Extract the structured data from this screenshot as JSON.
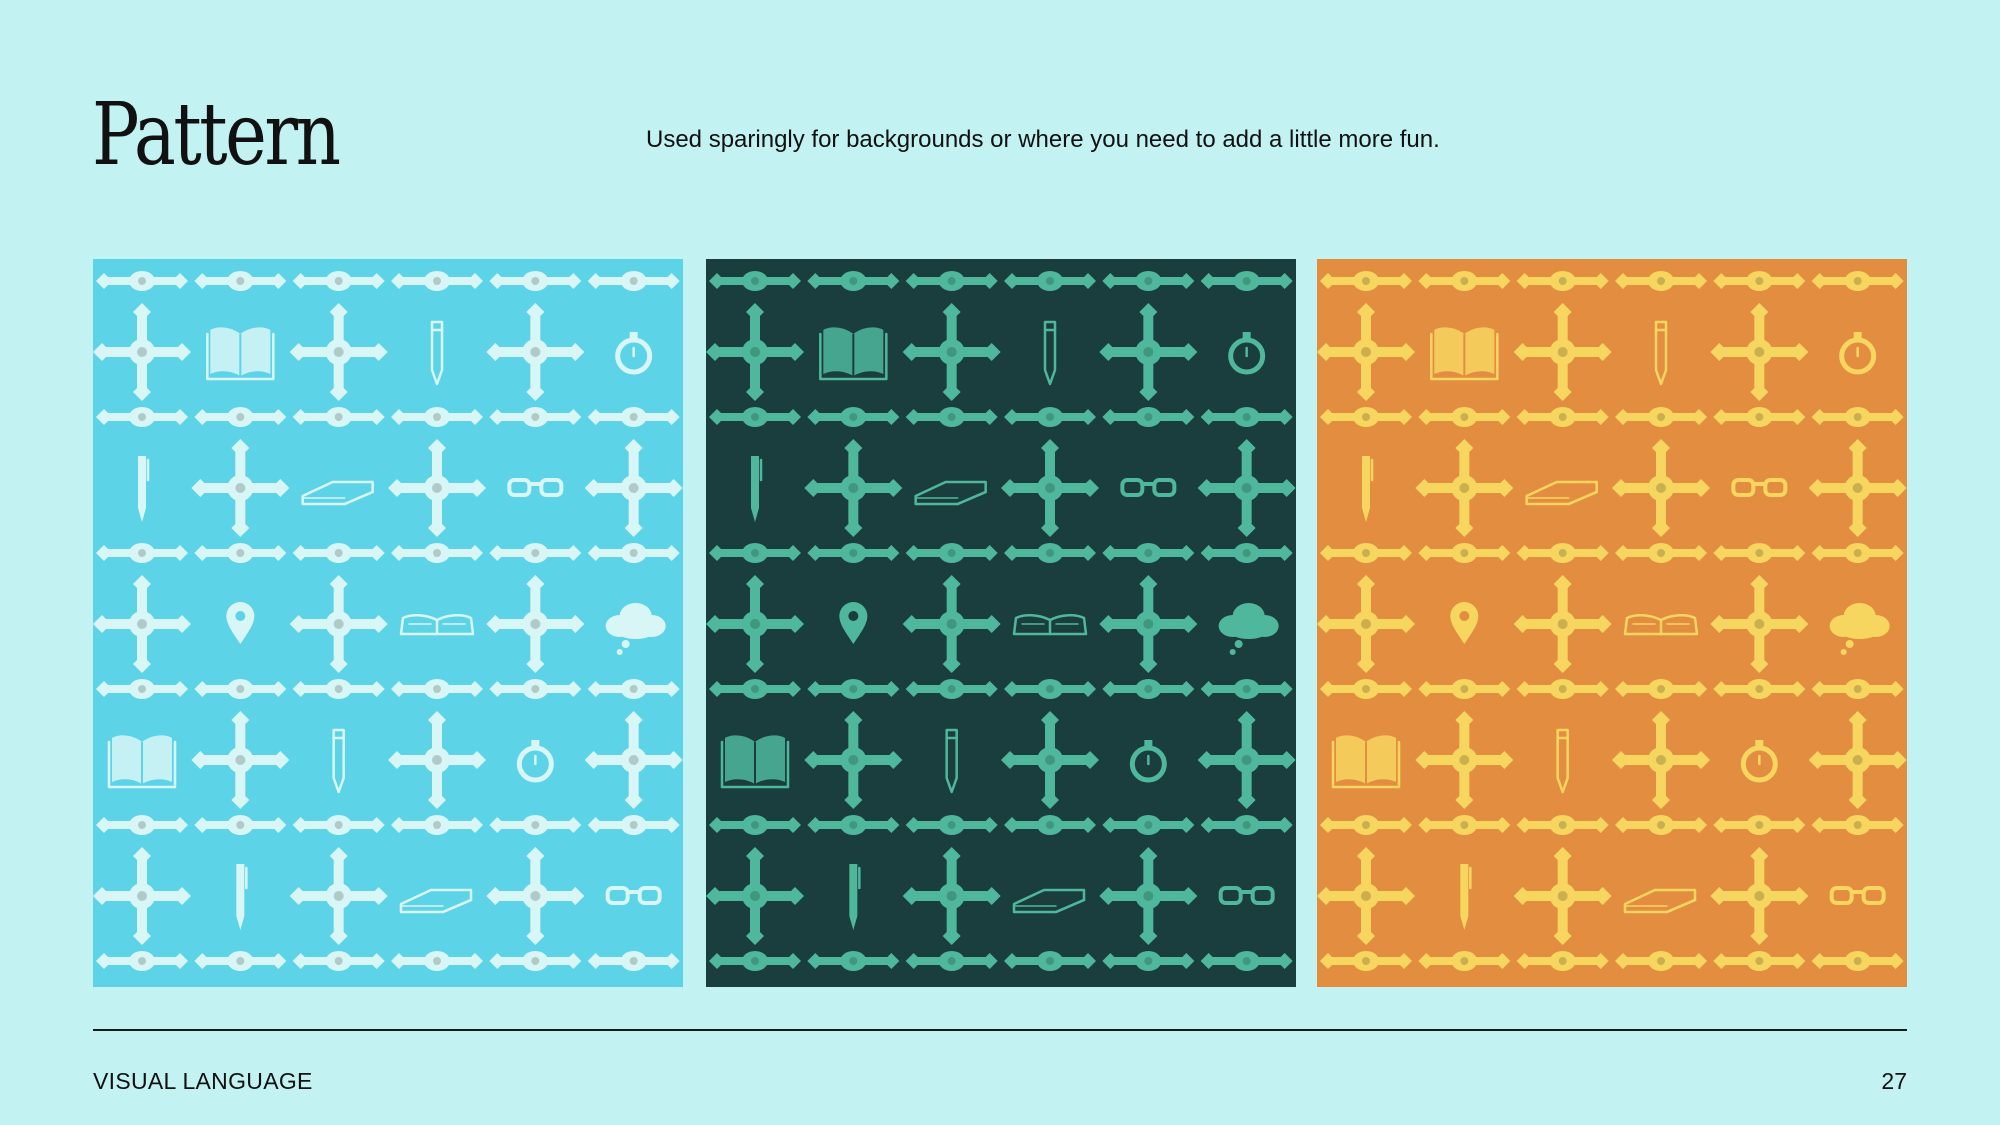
{
  "header": {
    "title": "Pattern",
    "description": "Used sparingly for backgrounds or where you need to add a little more fun."
  },
  "patterns": [
    {
      "name": "blue",
      "background": "#5dd3e8",
      "ink": "#d8f6f6",
      "accent": "#d8f6f6"
    },
    {
      "name": "dark-green",
      "background": "#1a3e3d",
      "ink": "#4fb79c",
      "accent": "#4fb79c"
    },
    {
      "name": "orange",
      "background": "#e38d41",
      "ink": "#f7d660",
      "accent": "#f7d660"
    }
  ],
  "pattern_icons": [
    [
      "book-icon",
      "pencil-icon",
      "stopwatch-icon"
    ],
    [
      "pen-icon",
      "notepad-icon",
      "glasses-icon"
    ],
    [
      "location-pin-icon",
      "open-book-icon",
      "thought-cloud-icon"
    ],
    [
      "book-icon",
      "pencil-icon",
      "stopwatch-icon"
    ],
    [
      "pen-icon",
      "notepad-icon",
      "glasses-icon"
    ]
  ],
  "footer": {
    "section": "VISUAL LANGUAGE",
    "page": "27"
  }
}
